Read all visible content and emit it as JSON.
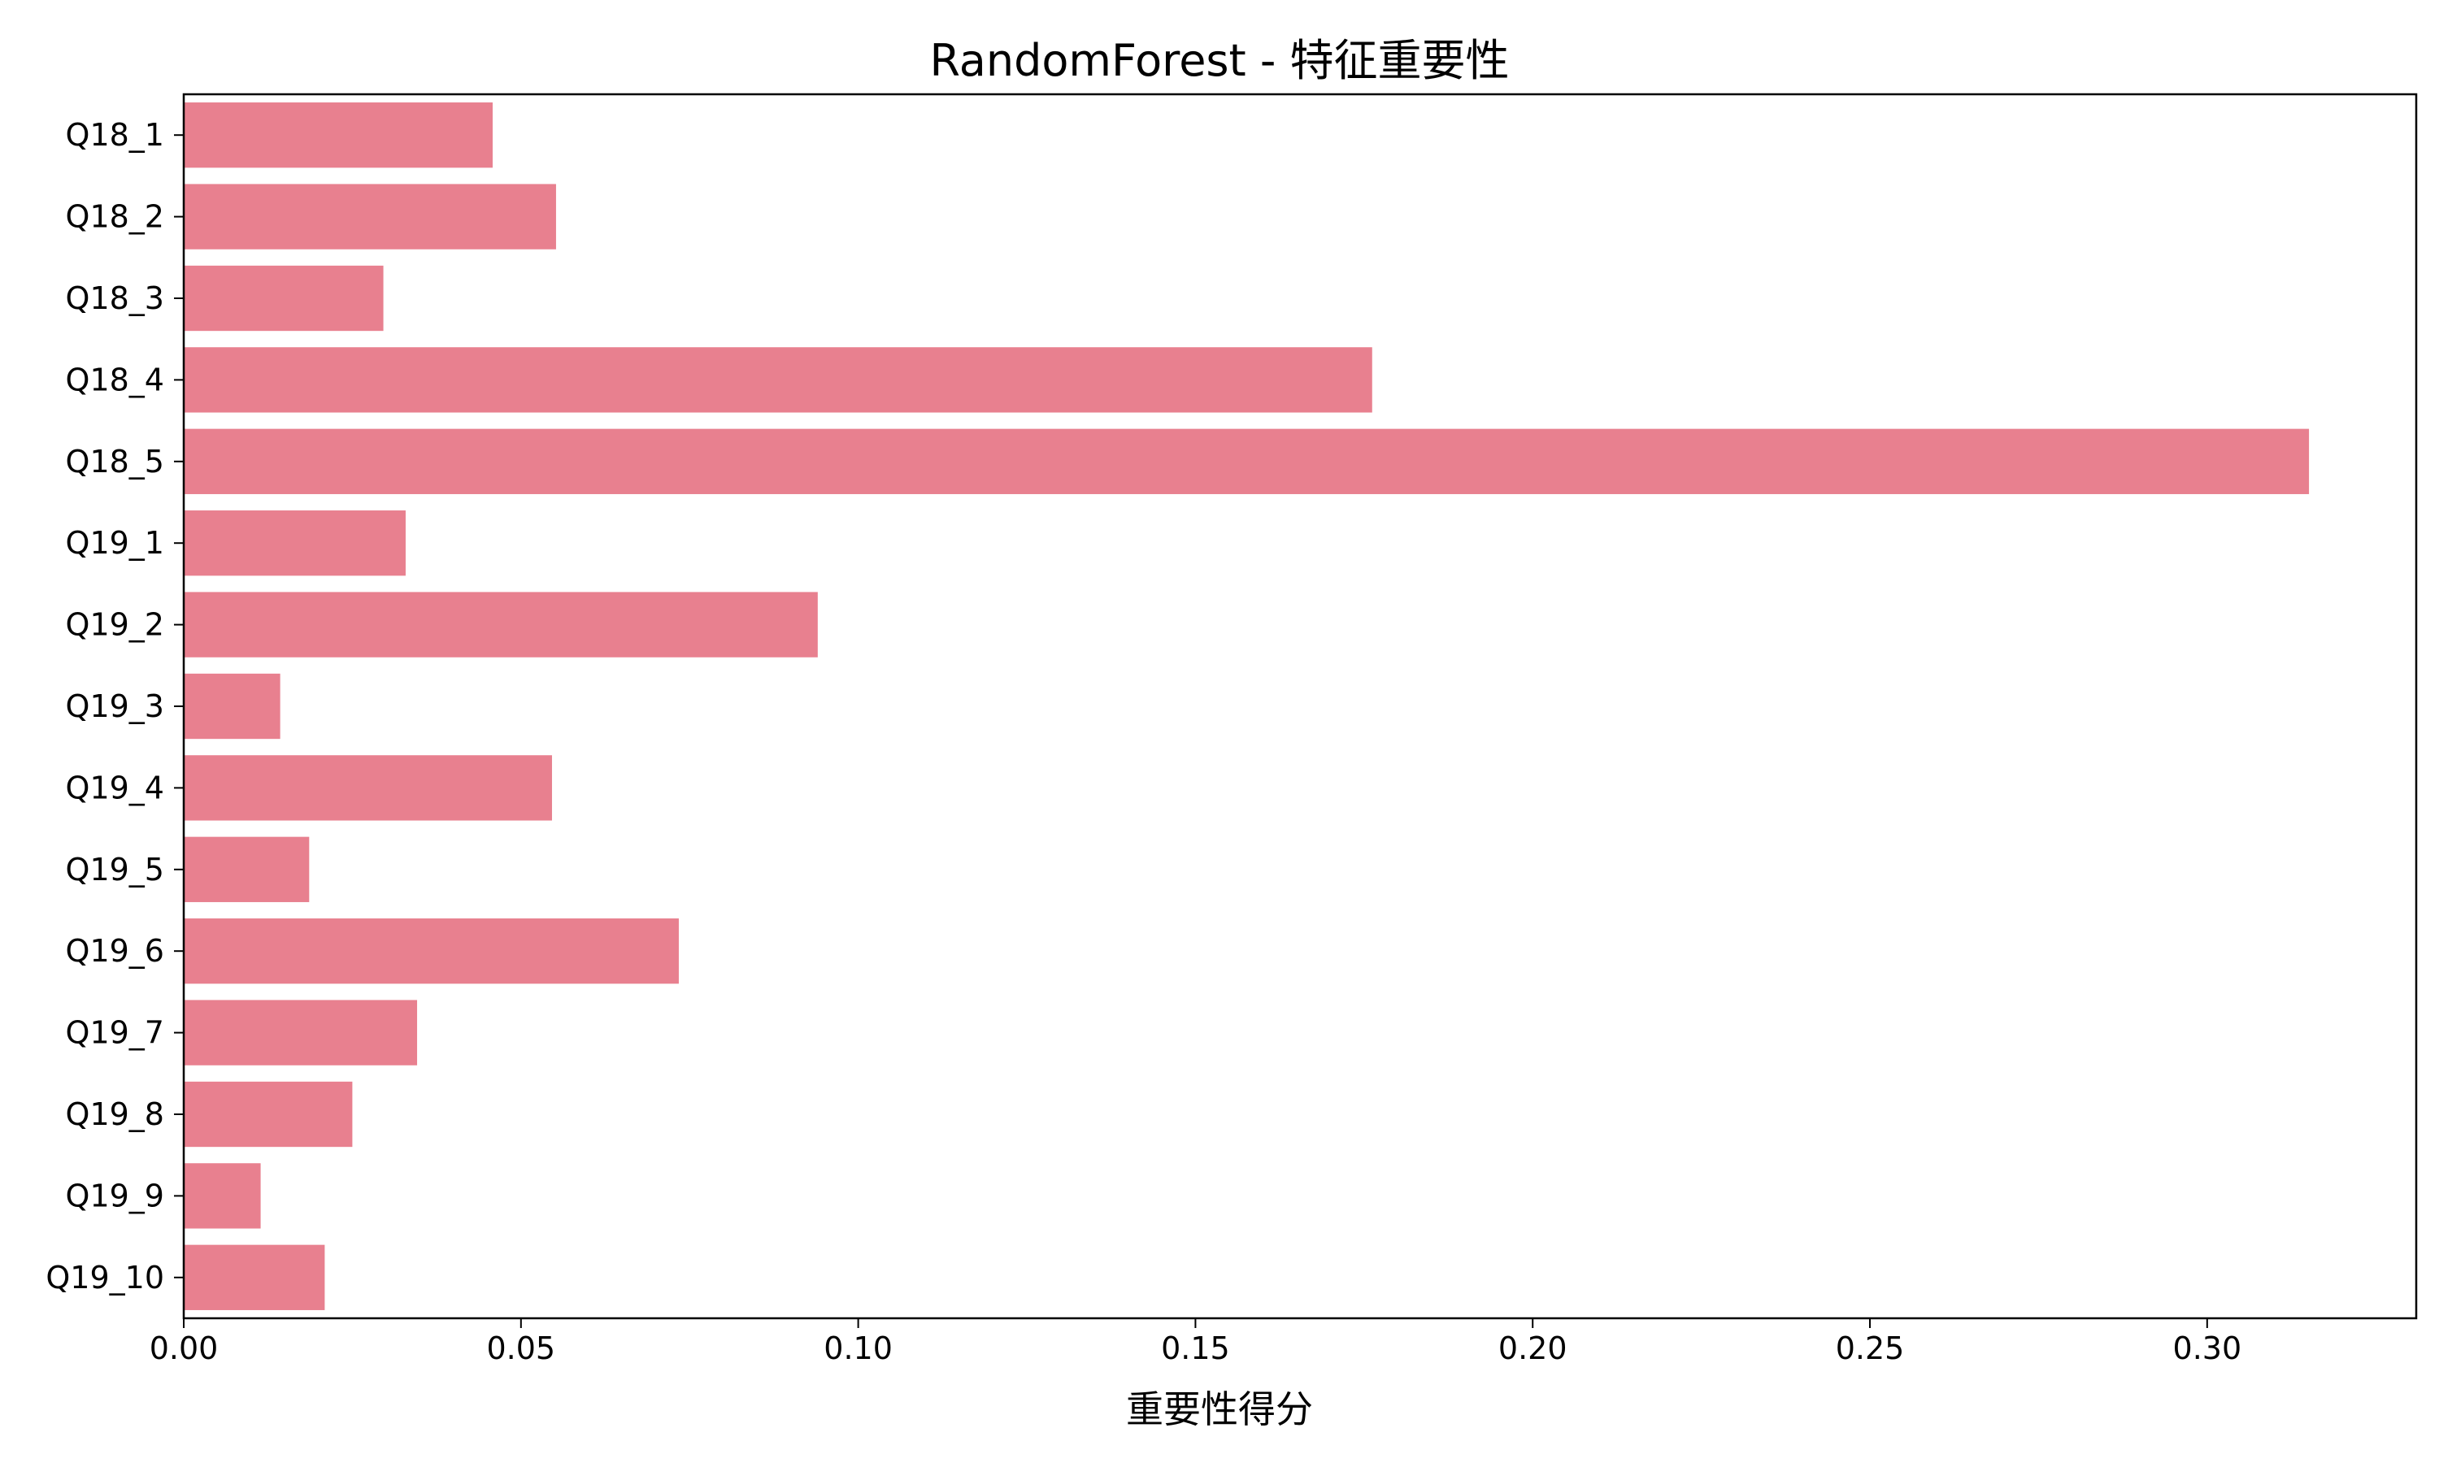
{
  "chart_data": {
    "type": "bar",
    "orientation": "horizontal",
    "title": "RandomForest - 特征重要性",
    "xlabel": "重要性得分",
    "ylabel": "",
    "categories": [
      "Q18_1",
      "Q18_2",
      "Q18_3",
      "Q18_4",
      "Q18_5",
      "Q19_1",
      "Q19_2",
      "Q19_3",
      "Q19_4",
      "Q19_5",
      "Q19_6",
      "Q19_7",
      "Q19_8",
      "Q19_9",
      "Q19_10"
    ],
    "values": [
      0.0458,
      0.0552,
      0.0296,
      0.1762,
      0.3151,
      0.0329,
      0.094,
      0.0143,
      0.0546,
      0.0186,
      0.0734,
      0.0346,
      0.025,
      0.0114,
      0.0209
    ],
    "xlim": [
      0,
      0.331
    ],
    "xticks": [
      "0.00",
      "0.05",
      "0.10",
      "0.15",
      "0.20",
      "0.25",
      "0.30"
    ],
    "bar_color": "#e8808f",
    "grid": false,
    "legend": "none"
  }
}
